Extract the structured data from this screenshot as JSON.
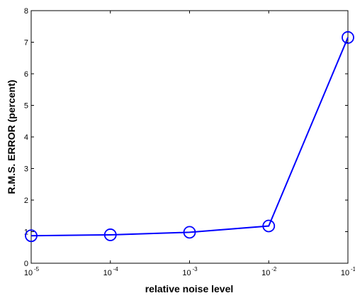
{
  "chart_data": {
    "type": "line",
    "x_scale": "log",
    "x": [
      1e-05,
      0.0001,
      0.001,
      0.01,
      0.1
    ],
    "series": [
      {
        "values": [
          0.87,
          0.9,
          0.98,
          1.18,
          7.15
        ]
      }
    ],
    "xlabel": "relative noise level",
    "ylabel": "R.M.S. ERROR (percent)",
    "xlim": [
      1e-05,
      0.1
    ],
    "ylim": [
      0,
      8
    ],
    "x_ticks": [
      {
        "base": "10",
        "exp": "-5"
      },
      {
        "base": "10",
        "exp": "-4"
      },
      {
        "base": "10",
        "exp": "-3"
      },
      {
        "base": "10",
        "exp": "-2"
      },
      {
        "base": "10",
        "exp": "-1"
      }
    ],
    "y_ticks": [
      "0",
      "1",
      "2",
      "3",
      "4",
      "5",
      "6",
      "7",
      "8"
    ],
    "grid": false,
    "line_color": "#0000ff",
    "marker": "circle"
  }
}
